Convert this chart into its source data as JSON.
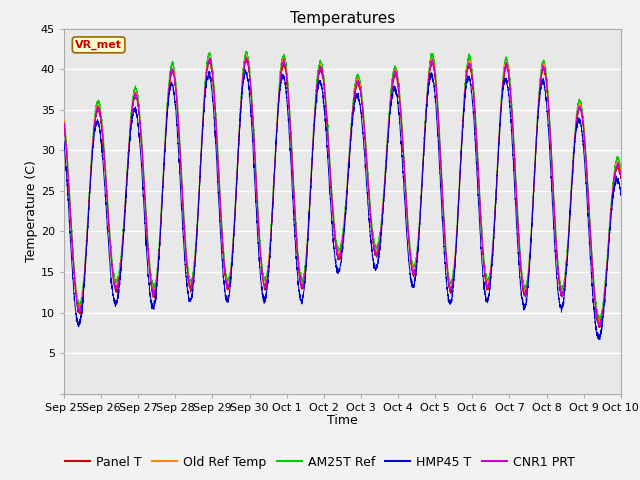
{
  "title": "Temperatures",
  "xlabel": "Time",
  "ylabel": "Temperature (C)",
  "ylim": [
    0,
    45
  ],
  "yticks": [
    0,
    5,
    10,
    15,
    20,
    25,
    30,
    35,
    40,
    45
  ],
  "xtick_labels": [
    "Sep 25",
    "Sep 26",
    "Sep 27",
    "Sep 28",
    "Sep 29",
    "Sep 30",
    "Oct 1",
    "Oct 2",
    "Oct 3",
    "Oct 4",
    "Oct 5",
    "Oct 6",
    "Oct 7",
    "Oct 8",
    "Oct 9",
    "Oct 10"
  ],
  "legend_labels": [
    "Panel T",
    "Old Ref Temp",
    "AM25T Ref",
    "HMP45 T",
    "CNR1 PRT"
  ],
  "line_colors": [
    "#cc0000",
    "#ff8800",
    "#00cc00",
    "#0000cc",
    "#cc00cc"
  ],
  "fig_bg": "#f2f2f2",
  "axes_bg": "#e8e8e8",
  "vr_met_label": "VR_met",
  "vr_met_color": "#cc0000",
  "n_days": 15,
  "title_fontsize": 11,
  "label_fontsize": 9,
  "tick_fontsize": 8,
  "legend_fontsize": 9,
  "figsize": [
    6.4,
    4.8
  ],
  "dpi": 100
}
